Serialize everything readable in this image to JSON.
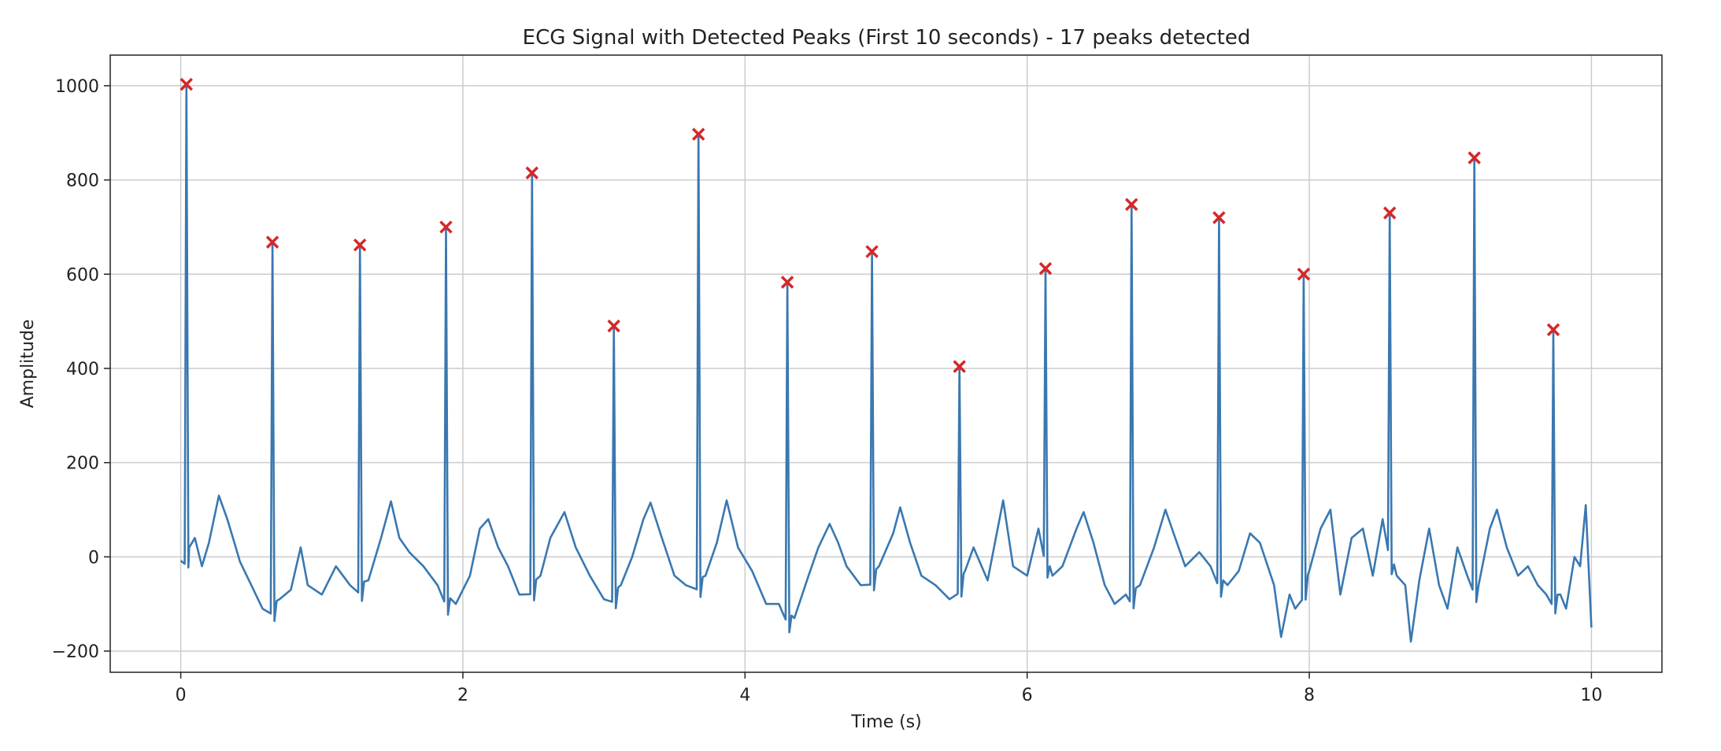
{
  "chart_data": {
    "type": "line",
    "title": "ECG Signal with Detected Peaks (First 10 seconds) - 17 peaks detected",
    "xlabel": "Time (s)",
    "ylabel": "Amplitude",
    "xlim": [
      -0.5,
      10.5
    ],
    "ylim": [
      -245,
      1065
    ],
    "xticks": [
      0,
      2,
      4,
      6,
      8,
      10
    ],
    "yticks": [
      -200,
      0,
      200,
      400,
      600,
      800,
      1000
    ],
    "grid": true,
    "legend": "none",
    "colors": {
      "signal": "#3a78b0",
      "peaks": "#d62728",
      "grid": "#cccccc",
      "axes": "#222222"
    },
    "peaks": {
      "x": [
        0.04,
        0.65,
        1.27,
        1.88,
        2.49,
        3.07,
        3.67,
        4.3,
        4.9,
        5.52,
        6.13,
        6.74,
        7.36,
        7.96,
        8.57,
        9.17,
        9.73
      ],
      "y": [
        1003,
        668,
        662,
        700,
        815,
        490,
        897,
        583,
        648,
        404,
        612,
        748,
        720,
        600,
        730,
        847,
        482
      ]
    },
    "baseline_points": [
      [
        0.0,
        -8
      ],
      [
        0.06,
        20
      ],
      [
        0.1,
        40
      ],
      [
        0.15,
        -20
      ],
      [
        0.2,
        30
      ],
      [
        0.27,
        130
      ],
      [
        0.33,
        80
      ],
      [
        0.38,
        30
      ],
      [
        0.42,
        -10
      ],
      [
        0.5,
        -60
      ],
      [
        0.58,
        -110
      ],
      [
        0.7,
        -90
      ],
      [
        0.78,
        -70
      ],
      [
        0.85,
        20
      ],
      [
        0.9,
        -60
      ],
      [
        1.0,
        -80
      ],
      [
        1.1,
        -20
      ],
      [
        1.2,
        -60
      ],
      [
        1.33,
        -50
      ],
      [
        1.42,
        40
      ],
      [
        1.49,
        118
      ],
      [
        1.55,
        40
      ],
      [
        1.62,
        10
      ],
      [
        1.72,
        -20
      ],
      [
        1.82,
        -60
      ],
      [
        1.95,
        -100
      ],
      [
        2.05,
        -40
      ],
      [
        2.12,
        60
      ],
      [
        2.18,
        80
      ],
      [
        2.25,
        20
      ],
      [
        2.32,
        -20
      ],
      [
        2.4,
        -80
      ],
      [
        2.55,
        -40
      ],
      [
        2.62,
        40
      ],
      [
        2.72,
        95
      ],
      [
        2.8,
        20
      ],
      [
        2.9,
        -40
      ],
      [
        3.0,
        -90
      ],
      [
        3.12,
        -60
      ],
      [
        3.2,
        0
      ],
      [
        3.28,
        80
      ],
      [
        3.33,
        115
      ],
      [
        3.4,
        50
      ],
      [
        3.5,
        -40
      ],
      [
        3.58,
        -60
      ],
      [
        3.72,
        -40
      ],
      [
        3.8,
        30
      ],
      [
        3.87,
        120
      ],
      [
        3.95,
        20
      ],
      [
        4.05,
        -30
      ],
      [
        4.15,
        -100
      ],
      [
        4.24,
        -100
      ],
      [
        4.35,
        -130
      ],
      [
        4.45,
        -40
      ],
      [
        4.52,
        20
      ],
      [
        4.6,
        70
      ],
      [
        4.66,
        30
      ],
      [
        4.72,
        -20
      ],
      [
        4.82,
        -60
      ],
      [
        4.95,
        -20
      ],
      [
        5.05,
        50
      ],
      [
        5.1,
        105
      ],
      [
        5.17,
        30
      ],
      [
        5.25,
        -40
      ],
      [
        5.35,
        -60
      ],
      [
        5.45,
        -90
      ],
      [
        5.56,
        -30
      ],
      [
        5.62,
        20
      ],
      [
        5.72,
        -50
      ],
      [
        5.83,
        120
      ],
      [
        5.9,
        -20
      ],
      [
        6.0,
        -40
      ],
      [
        6.08,
        60
      ],
      [
        6.18,
        -40
      ],
      [
        6.25,
        -20
      ],
      [
        6.35,
        60
      ],
      [
        6.4,
        95
      ],
      [
        6.47,
        30
      ],
      [
        6.55,
        -60
      ],
      [
        6.62,
        -100
      ],
      [
        6.7,
        -80
      ],
      [
        6.8,
        -60
      ],
      [
        6.9,
        20
      ],
      [
        6.98,
        100
      ],
      [
        7.05,
        40
      ],
      [
        7.12,
        -20
      ],
      [
        7.22,
        10
      ],
      [
        7.3,
        -20
      ],
      [
        7.42,
        -60
      ],
      [
        7.5,
        -30
      ],
      [
        7.58,
        50
      ],
      [
        7.65,
        30
      ],
      [
        7.75,
        -60
      ],
      [
        7.8,
        -170
      ],
      [
        7.86,
        -80
      ],
      [
        7.9,
        -110
      ],
      [
        8.0,
        -30
      ],
      [
        8.08,
        60
      ],
      [
        8.15,
        100
      ],
      [
        8.22,
        -80
      ],
      [
        8.3,
        40
      ],
      [
        8.38,
        60
      ],
      [
        8.45,
        -40
      ],
      [
        8.52,
        80
      ],
      [
        8.62,
        -40
      ],
      [
        8.68,
        -60
      ],
      [
        8.72,
        -180
      ],
      [
        8.78,
        -50
      ],
      [
        8.85,
        60
      ],
      [
        8.92,
        -60
      ],
      [
        8.98,
        -110
      ],
      [
        9.05,
        20
      ],
      [
        9.12,
        -40
      ],
      [
        9.2,
        -60
      ],
      [
        9.28,
        60
      ],
      [
        9.33,
        100
      ],
      [
        9.4,
        20
      ],
      [
        9.48,
        -40
      ],
      [
        9.55,
        -20
      ],
      [
        9.62,
        -60
      ],
      [
        9.68,
        -80
      ],
      [
        9.78,
        -80
      ],
      [
        9.82,
        -110
      ],
      [
        9.88,
        0
      ],
      [
        9.92,
        -20
      ],
      [
        9.96,
        110
      ],
      [
        10.0,
        -150
      ]
    ]
  }
}
